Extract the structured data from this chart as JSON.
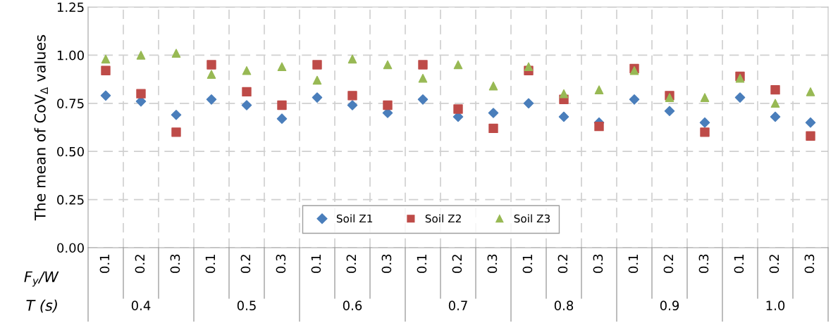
{
  "chart_data": {
    "type": "scatter",
    "ylabel": "The mean of CoV$_{Δ}$ values",
    "categories": [
      "0.1",
      "0.2",
      "0.3",
      "0.1",
      "0.2",
      "0.3",
      "0.1",
      "0.2",
      "0.3",
      "0.1",
      "0.2",
      "0.3",
      "0.1",
      "0.2",
      "0.3",
      "0.1",
      "0.2",
      "0.3",
      "0.1",
      "0.2",
      "0.3"
    ],
    "annotations": [
      "F$_{y}$/W",
      "T (s)",
      "0.4",
      "0.5",
      "0.6",
      "0.7",
      "0.8",
      "0.9",
      "1.0"
    ],
    "series": [
      {
        "name": "Soil Z1",
        "color": "#4a7ebb",
        "marker": "diamond",
        "values": [
          0.79,
          0.76,
          0.69,
          0.77,
          0.74,
          0.67,
          0.78,
          0.74,
          0.7,
          0.77,
          0.68,
          0.7,
          0.75,
          0.68,
          0.65,
          0.77,
          0.71,
          0.65,
          0.78,
          0.68,
          0.65
        ]
      },
      {
        "name": "Soil Z2",
        "color": "#be4b48",
        "marker": "square",
        "values": [
          0.92,
          0.8,
          0.6,
          0.95,
          0.81,
          0.74,
          0.95,
          0.79,
          0.74,
          0.95,
          0.72,
          0.62,
          0.92,
          0.77,
          0.63,
          0.93,
          0.79,
          0.6,
          0.89,
          0.82,
          0.58
        ]
      },
      {
        "name": "Soil Z3",
        "color": "#98b954",
        "marker": "triangle",
        "values": [
          0.98,
          1.0,
          1.01,
          0.9,
          0.92,
          0.94,
          0.87,
          0.98,
          0.95,
          0.88,
          0.95,
          0.84,
          0.94,
          0.8,
          0.82,
          0.92,
          0.78,
          0.78,
          0.88,
          0.75,
          0.81
        ]
      }
    ],
    "ylim": [
      0,
      1.25
    ],
    "yticks": [
      {
        "value": 0,
        "label": "0.00"
      },
      {
        "value": 0.25,
        "label": "0.25"
      },
      {
        "value": 0.5,
        "label": "0.50"
      },
      {
        "value": 0.75,
        "label": "0.75"
      },
      {
        "value": 1,
        "label": "1.00"
      },
      {
        "value": 1.25,
        "label": "1.25"
      }
    ],
    "grid": true,
    "legend": "bottom"
  }
}
